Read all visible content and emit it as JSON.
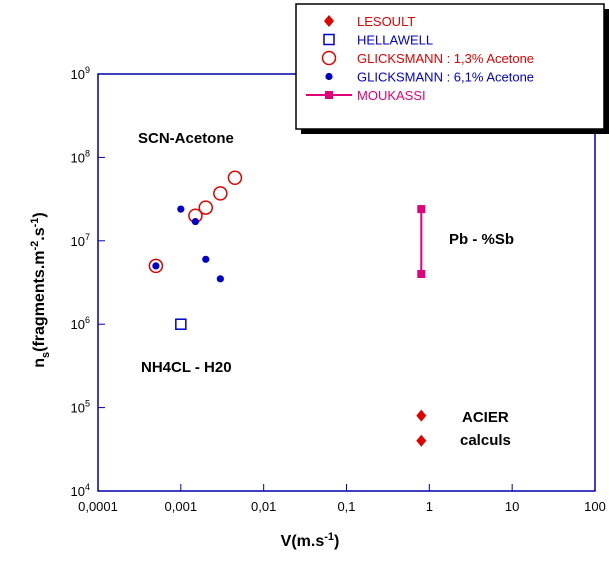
{
  "chart_data": {
    "type": "scatter",
    "xscale": "log",
    "yscale": "log",
    "xlim": [
      0.0001,
      100
    ],
    "ylim": [
      10000,
      1000000000
    ],
    "xticks": [
      "0,0001",
      "0,001",
      "0,01",
      "0,1",
      "1",
      "10",
      "100"
    ],
    "yticks": [
      {
        "base": "10",
        "exp": "4"
      },
      {
        "base": "10",
        "exp": "5"
      },
      {
        "base": "10",
        "exp": "6"
      },
      {
        "base": "10",
        "exp": "7"
      },
      {
        "base": "10",
        "exp": "8"
      },
      {
        "base": "10",
        "exp": "9"
      }
    ],
    "xlabel": {
      "main": "V(m.s",
      "sup": "-1",
      "close": ")"
    },
    "ylabel": {
      "n": "n",
      "sub": "s",
      "p1": "(fragments.m",
      "sup1": "-2",
      "p2": ".s",
      "sup2": "-1",
      "p3": ")"
    },
    "annotations": [
      "SCN-Acetone",
      "NH4CL - H20",
      "Pb - %Sb",
      "ACIER",
      "calculs"
    ],
    "legend_position": "top-right",
    "series": [
      {
        "name": "LESOULT",
        "marker": "filled-diamond",
        "color": "#e00000",
        "points": [
          [
            0.8,
            80000
          ],
          [
            0.8,
            40000
          ]
        ]
      },
      {
        "name": "HELLAWELL",
        "marker": "open-square",
        "color": "#0000cc",
        "points": [
          [
            0.001,
            1000000
          ]
        ]
      },
      {
        "name": "GLICKSMANN : 1,3% Acetone",
        "marker": "open-circle",
        "color": "#e00000",
        "points": [
          [
            0.0005,
            5000000
          ],
          [
            0.0015,
            20000000
          ],
          [
            0.002,
            25000000
          ],
          [
            0.003,
            37000000
          ],
          [
            0.0045,
            57000000
          ]
        ]
      },
      {
        "name": "GLICKSMANN : 6,1% Acetone",
        "marker": "filled-circle",
        "color": "#0000cc",
        "points": [
          [
            0.0005,
            5000000
          ],
          [
            0.001,
            24000000
          ],
          [
            0.0015,
            17000000
          ],
          [
            0.002,
            6000000
          ],
          [
            0.003,
            3500000
          ]
        ]
      },
      {
        "name": "MOUKASSI",
        "marker": "filled-square-line",
        "color": "#e0007a",
        "points": [
          [
            0.8,
            24000000
          ],
          [
            0.8,
            4000000
          ]
        ]
      }
    ]
  }
}
